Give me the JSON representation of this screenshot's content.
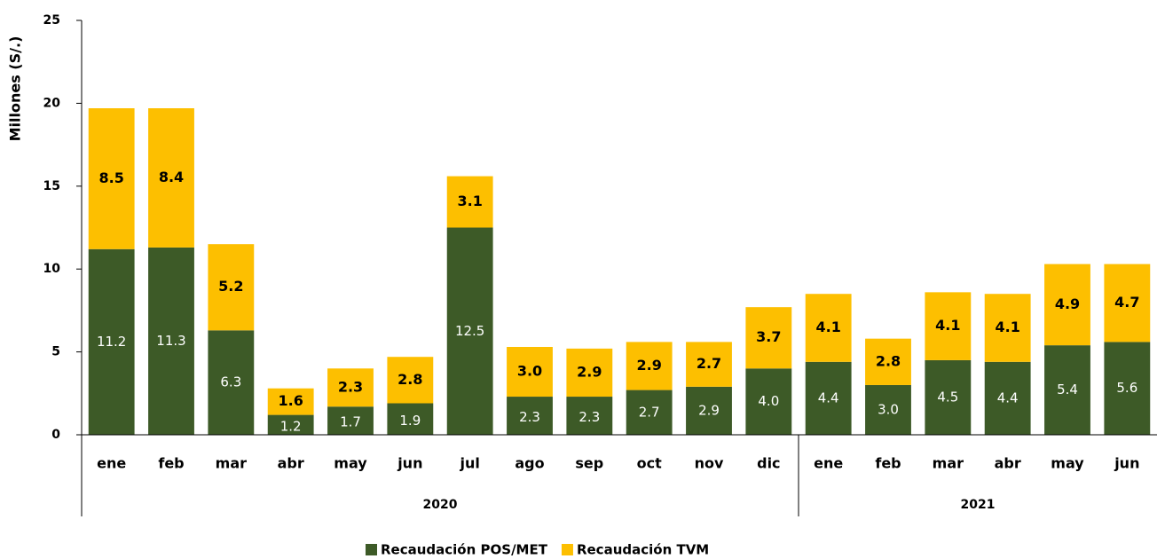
{
  "chart_data": {
    "type": "stacked_bar",
    "ylabel": "Millones (S/.)",
    "category_groups": [
      {
        "name": "2020",
        "categories": [
          "ene",
          "feb",
          "mar",
          "abr",
          "may",
          "jun",
          "jul",
          "ago",
          "sep",
          "oct",
          "nov",
          "dic"
        ]
      },
      {
        "name": "2021",
        "categories": [
          "ene",
          "feb",
          "mar",
          "abr",
          "may",
          "jun"
        ]
      }
    ],
    "series": [
      {
        "name": "Recaudación POS/MET",
        "color": "#3d5a27",
        "values": [
          11.2,
          11.3,
          6.3,
          1.2,
          1.7,
          1.9,
          12.5,
          2.3,
          2.3,
          2.7,
          2.9,
          4.0,
          4.4,
          3.0,
          4.5,
          4.4,
          5.4,
          5.6
        ],
        "value_labels": [
          "11.2",
          "11.3",
          "6.3",
          "1.2",
          "1.7",
          "1.9",
          "12.5",
          "2.3",
          "2.3",
          "2.7",
          "2.9",
          "4.0",
          "4.4",
          "3.0",
          "4.5",
          "4.4",
          "5.4",
          "5.6"
        ]
      },
      {
        "name": "Recaudación TVM",
        "color": "#fdbf00",
        "values": [
          8.5,
          8.4,
          5.2,
          1.6,
          2.3,
          2.8,
          3.1,
          3.0,
          2.9,
          2.9,
          2.7,
          3.7,
          4.1,
          2.8,
          4.1,
          4.1,
          4.9,
          4.7
        ],
        "value_labels": [
          "8.5",
          "8.4",
          "5.2",
          "1.6",
          "2.3",
          "2.8",
          "3.1",
          "3.0",
          "2.9",
          "2.9",
          "2.7",
          "3.7",
          "4.1",
          "2.8",
          "4.1",
          "4.1",
          "4.9",
          "4.7"
        ]
      }
    ],
    "ylim": [
      0,
      25
    ],
    "yticks": [
      0,
      5,
      10,
      15,
      20,
      25
    ],
    "legend": "bottom"
  }
}
